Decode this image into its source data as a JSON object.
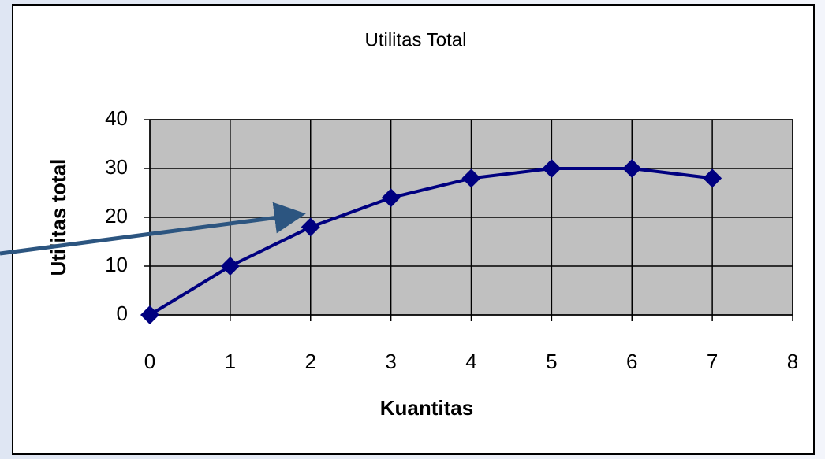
{
  "chart_data": {
    "type": "line",
    "title": "Utilitas Total",
    "x_label": "Kuantitas",
    "y_label": "Utilitas total",
    "x": [
      0,
      1,
      2,
      3,
      4,
      5,
      6,
      7
    ],
    "series": [
      {
        "name": "Utilitas Total",
        "color": "#000080",
        "values": [
          0,
          10,
          18,
          24,
          28,
          30,
          30,
          28
        ]
      }
    ],
    "xlim": [
      0,
      8
    ],
    "xticks": [
      0,
      1,
      2,
      3,
      4,
      5,
      6,
      7,
      8
    ],
    "ylim": [
      0,
      40
    ],
    "yticks": [
      0,
      10,
      20,
      30,
      40
    ],
    "grid": true,
    "plot_background": "#c0c0c0"
  }
}
